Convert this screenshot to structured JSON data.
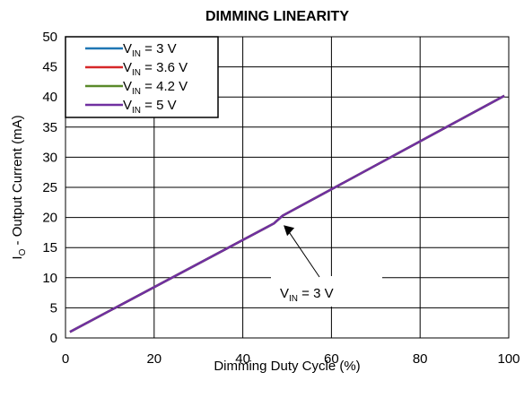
{
  "chart_data": {
    "type": "line",
    "title": "DIMMING LINEARITY",
    "xlabel": "Dimming Duty Cycle (%)",
    "ylabel": {
      "prefix": "I",
      "sub": "O",
      "suffix": " - Output Current (mA)"
    },
    "xlim": [
      0,
      100
    ],
    "ylim": [
      0,
      50
    ],
    "xticks": [
      0,
      20,
      40,
      60,
      80,
      100
    ],
    "yticks": [
      0,
      5,
      10,
      15,
      20,
      25,
      30,
      35,
      40,
      45,
      50
    ],
    "grid": true,
    "legend_position": "top-left",
    "series": [
      {
        "name": {
          "main": "V",
          "sub": "IN",
          "rest": " = 3 V"
        },
        "color": "#1f77b4",
        "x": [
          1,
          47,
          49,
          99
        ],
        "y": [
          1.0,
          19.0,
          20.3,
          40.2
        ]
      },
      {
        "name": {
          "main": "V",
          "sub": "IN",
          "rest": " = 3.6 V"
        },
        "color": "#d62728",
        "x": [
          1,
          47,
          49,
          99
        ],
        "y": [
          1.0,
          19.0,
          20.3,
          40.2
        ]
      },
      {
        "name": {
          "main": "V",
          "sub": "IN",
          "rest": " = 4.2 V"
        },
        "color": "#5a8a2a",
        "x": [
          1,
          47,
          49,
          99
        ],
        "y": [
          1.0,
          19.0,
          20.3,
          40.2
        ]
      },
      {
        "name": {
          "main": "V",
          "sub": "IN",
          "rest": " = 5 V"
        },
        "color": "#7030a0",
        "x": [
          1,
          47,
          49,
          99
        ],
        "y": [
          1.0,
          19.0,
          20.3,
          40.2
        ]
      }
    ],
    "annotation": {
      "label": {
        "main": "V",
        "sub": "IN",
        "rest": " = 3 V"
      },
      "point": {
        "x": 49,
        "y": 19.6
      }
    }
  }
}
